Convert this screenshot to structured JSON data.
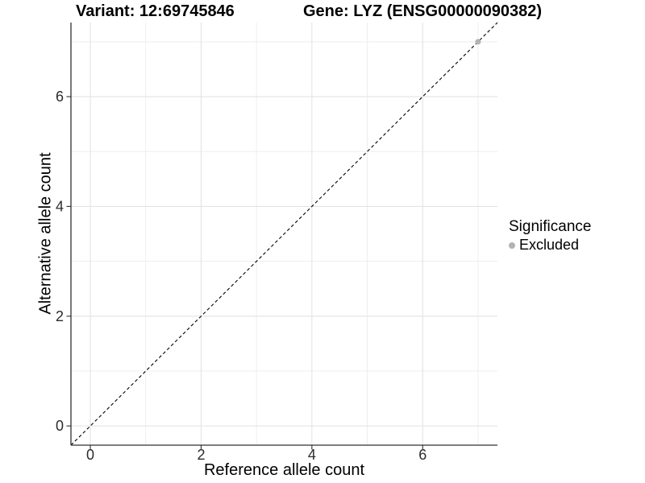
{
  "chart_data": {
    "type": "scatter",
    "titles": {
      "left": "Variant: 12:69745846",
      "right": "Gene: LYZ (ENSG00000090382)"
    },
    "xlabel": "Reference allele count",
    "ylabel": "Alternative allele count",
    "xlim": [
      -0.35,
      7.35
    ],
    "ylim": [
      -0.35,
      7.35
    ],
    "x_ticks": [
      0,
      2,
      4,
      6
    ],
    "y_ticks": [
      0,
      2,
      4,
      6
    ],
    "minor_grid_positions": [
      1,
      3,
      5,
      7
    ],
    "grid": true,
    "points": [
      {
        "x": 7,
        "y": 7,
        "significance": "Excluded",
        "color": "#b3b3b3"
      }
    ],
    "reference_line": {
      "kind": "identity",
      "x1": -0.35,
      "y1": -0.35,
      "x2": 7.35,
      "y2": 7.35,
      "style": "dashed",
      "color": "#000000"
    },
    "legend": {
      "position": "right",
      "title": "Significance",
      "items": [
        {
          "label": "Excluded",
          "color": "#b3b3b3",
          "shape": "circle"
        }
      ]
    },
    "colors": {
      "background": "#ffffff",
      "major_grid": "#e3e3e3",
      "minor_grid": "#ededed",
      "axis_line": "#303030",
      "tick_mark": "#303030",
      "tick_label": "#2b2b2b"
    }
  }
}
